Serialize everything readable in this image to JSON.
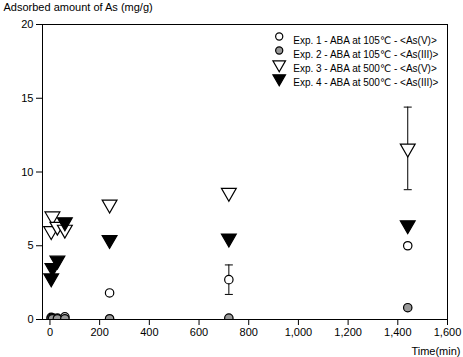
{
  "chart_data": {
    "type": "scatter",
    "xlabel": "Time(min)",
    "ylabel": "Adsorbed amount of As (mg/g)",
    "xlim": [
      -30,
      1600
    ],
    "ylim": [
      0,
      20
    ],
    "xticks": [
      0,
      200,
      400,
      600,
      800,
      1000,
      1200,
      1400,
      1600
    ],
    "yticks": [
      0,
      5,
      10,
      15,
      20
    ],
    "legend": "upper right",
    "x": [
      5,
      10,
      30,
      60,
      240,
      720,
      1440
    ],
    "series": [
      {
        "name": "Exp. 1 - ABA at 105℃ - <As(V)>",
        "color": "white",
        "marker": "circle",
        "values": [
          0.15,
          0.12,
          0.1,
          0.18,
          1.8,
          2.7,
          5.0
        ],
        "yerr": [
          0,
          0,
          0,
          0,
          0,
          1.0,
          0
        ]
      },
      {
        "name": "Exp. 2 - ABA at 105℃ - <As(III)>",
        "color": "#999999",
        "marker": "circle",
        "values": [
          0.08,
          0.05,
          0.05,
          0.05,
          0.05,
          0.1,
          0.8
        ],
        "yerr": [
          0,
          0,
          0,
          0,
          0,
          0,
          0
        ]
      },
      {
        "name": "Exp. 3 - ABA at 500℃ - <As(V)>",
        "color": "white",
        "marker": "triangle_down",
        "values": [
          6.0,
          7.0,
          6.3,
          6.1,
          7.8,
          8.6,
          11.6
        ],
        "yerr": [
          0,
          0,
          0,
          0,
          0,
          0,
          2.8
        ]
      },
      {
        "name": "Exp. 4 - ABA at 500℃ - <As(III)>",
        "color": "black",
        "marker": "triangle_down",
        "values": [
          2.8,
          3.5,
          4.0,
          6.6,
          5.4,
          5.5,
          6.4
        ],
        "yerr": [
          0,
          0,
          0,
          0,
          0,
          0,
          0
        ]
      }
    ]
  }
}
